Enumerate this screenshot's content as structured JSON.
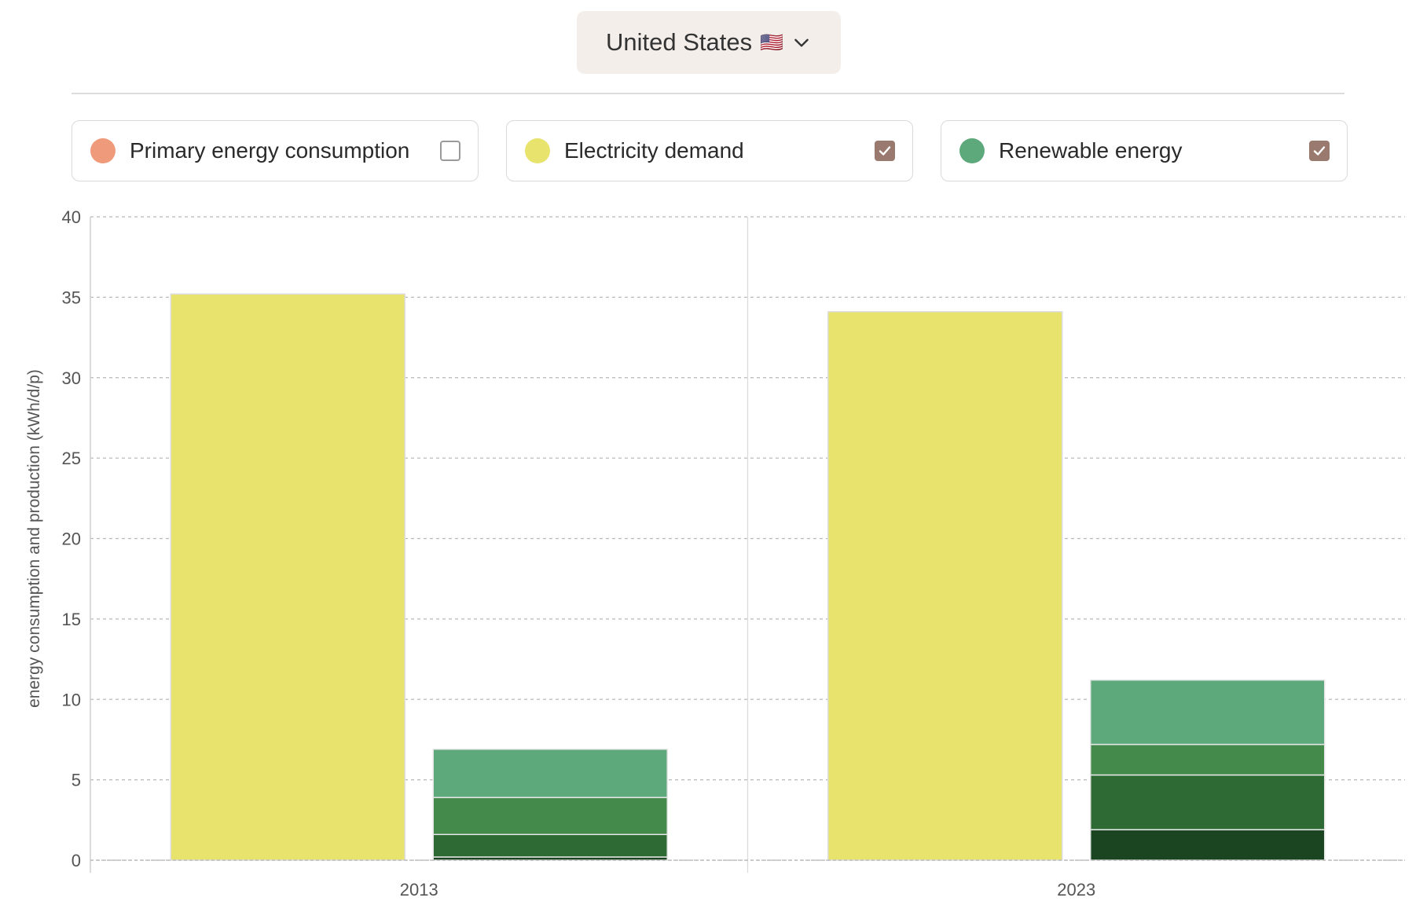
{
  "selector": {
    "country": "United States",
    "flag": "🇺🇸"
  },
  "legend": [
    {
      "label": "Primary energy consumption",
      "color": "#ef9a7a",
      "checked": false
    },
    {
      "label": "Electricity demand",
      "color": "#e8e36d",
      "checked": true
    },
    {
      "label": "Renewable energy",
      "color": "#5ea97b",
      "checked": true
    }
  ],
  "chart_data": {
    "type": "bar",
    "ylabel": "energy consumption and production (kWh/d/p)",
    "xlabel": "",
    "ylim": [
      0,
      40
    ],
    "yticks": [
      0,
      5,
      10,
      15,
      20,
      25,
      30,
      35,
      40
    ],
    "categories": [
      "2013",
      "2023"
    ],
    "grid": true,
    "series": [
      {
        "name": "Electricity demand",
        "color": "#e8e36d",
        "values": [
          35.2,
          34.1
        ]
      },
      {
        "name": "Renewable energy",
        "stacked": true,
        "segments": [
          {
            "color": "#1b4521",
            "values": [
              0.2,
              1.9
            ]
          },
          {
            "color": "#2e6b34",
            "values": [
              1.4,
              3.4
            ]
          },
          {
            "color": "#438a4b",
            "values": [
              2.3,
              1.9
            ]
          },
          {
            "color": "#5ea97b",
            "values": [
              3.0,
              4.0
            ]
          }
        ]
      }
    ]
  }
}
